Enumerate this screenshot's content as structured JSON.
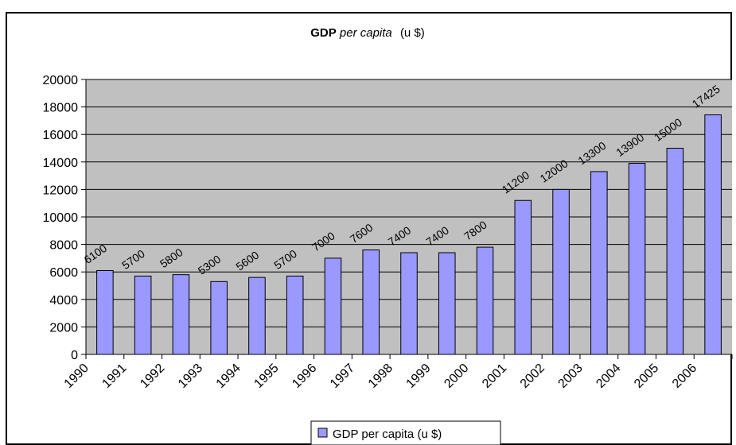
{
  "chart_data": {
    "type": "bar",
    "title": "GDP per capita (u $)",
    "title_parts": [
      "GDP",
      "per capita",
      "(u $)"
    ],
    "categories": [
      "1990",
      "1991",
      "1992",
      "1993",
      "1994",
      "1995",
      "1996",
      "1997",
      "1998",
      "1999",
      "2000",
      "2001",
      "2002",
      "2003",
      "2004",
      "2005",
      "2006"
    ],
    "series": [
      {
        "name": "GDP per capita (u $)",
        "values": [
          6100,
          5700,
          5800,
          5300,
          5600,
          5700,
          7000,
          7600,
          7400,
          7400,
          7800,
          11200,
          12000,
          13300,
          13900,
          15000,
          17425
        ],
        "color": "#9999ff"
      }
    ],
    "ylim": [
      0,
      20000
    ],
    "yticks": [
      0,
      2000,
      4000,
      6000,
      8000,
      10000,
      12000,
      14000,
      16000,
      18000,
      20000
    ],
    "grid": true,
    "plot_background": "#c0c0c0",
    "legend_position": "bottom",
    "data_labels": true,
    "xlabel": "",
    "ylabel": ""
  }
}
